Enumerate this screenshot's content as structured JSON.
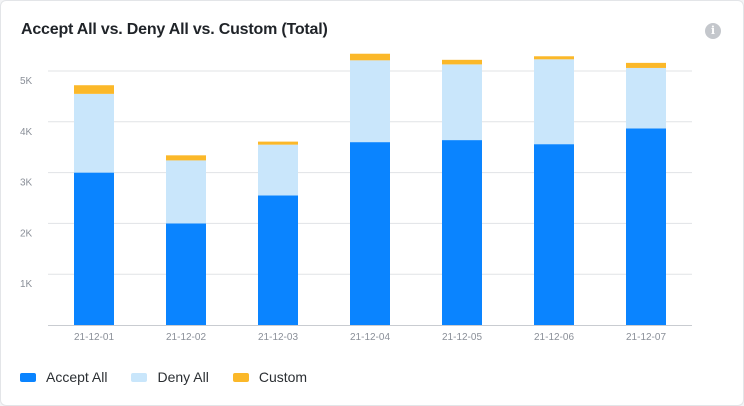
{
  "chart_data": {
    "type": "bar",
    "stacked": true,
    "title": "Accept All vs. Deny All vs. Custom (Total)",
    "xlabel": "",
    "ylabel": "",
    "categories": [
      "21-12-01",
      "21-12-02",
      "21-12-03",
      "21-12-04",
      "21-12-05",
      "21-12-06",
      "21-12-07"
    ],
    "ylim": [
      0,
      5000
    ],
    "yticks": [
      {
        "value": 1000,
        "label": "1K"
      },
      {
        "value": 2000,
        "label": "2K"
      },
      {
        "value": 3000,
        "label": "3K"
      },
      {
        "value": 4000,
        "label": "4K"
      },
      {
        "value": 5000,
        "label": "5K"
      }
    ],
    "grid": true,
    "legend_position": "bottom-left",
    "series": [
      {
        "name": "Accept All",
        "color": "#0a84ff",
        "values": [
          3000,
          2000,
          2550,
          3600,
          3640,
          3560,
          3870
        ]
      },
      {
        "name": "Deny All",
        "color": "#c9e6fb",
        "values": [
          1550,
          1240,
          1000,
          1610,
          1490,
          1670,
          1190
        ]
      },
      {
        "name": "Custom",
        "color": "#fbb829",
        "values": [
          170,
          100,
          60,
          130,
          90,
          60,
          100
        ]
      }
    ]
  },
  "icons": {
    "info": "info-icon"
  }
}
